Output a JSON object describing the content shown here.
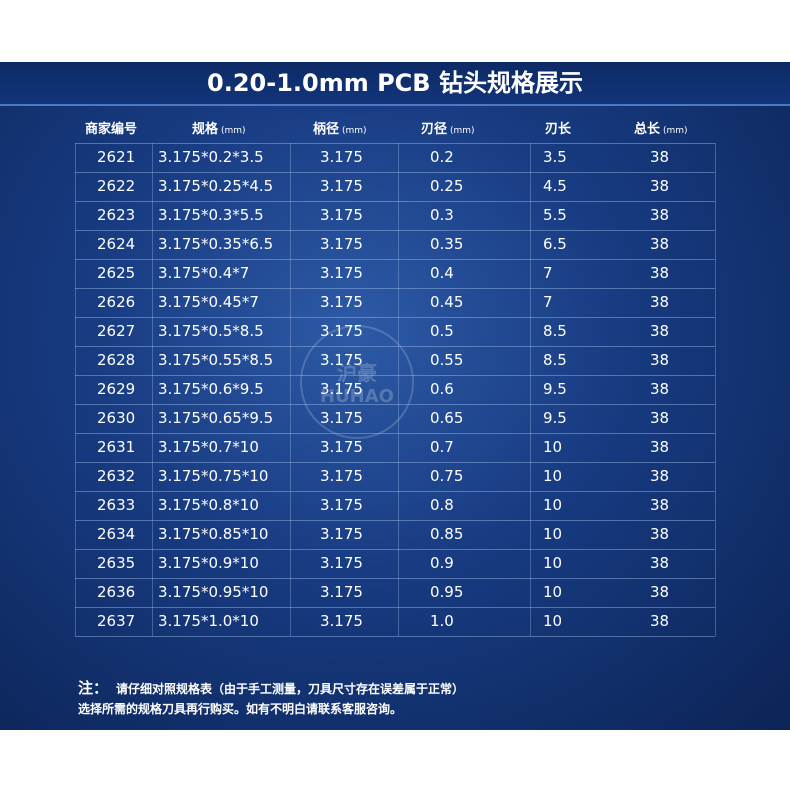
{
  "title": "0.20-1.0mm PCB 钻头规格展示",
  "table": {
    "header": [
      {
        "label": "商家编号"
      },
      {
        "label": "规格",
        "unit": "(mm)"
      },
      {
        "label": "柄径",
        "unit": "(mm)"
      },
      {
        "label": "刃径",
        "unit": "(mm)"
      },
      {
        "label": "刃长"
      },
      {
        "label": "总长",
        "unit": "(mm)"
      }
    ],
    "rows": [
      [
        "2621",
        "3.175*0.2*3.5",
        "3.175",
        "0.2",
        "3.5",
        "38"
      ],
      [
        "2622",
        "3.175*0.25*4.5",
        "3.175",
        "0.25",
        "4.5",
        "38"
      ],
      [
        "2623",
        "3.175*0.3*5.5",
        "3.175",
        "0.3",
        "5.5",
        "38"
      ],
      [
        "2624",
        "3.175*0.35*6.5",
        "3.175",
        "0.35",
        "6.5",
        "38"
      ],
      [
        "2625",
        "3.175*0.4*7",
        "3.175",
        "0.4",
        "7",
        "38"
      ],
      [
        "2626",
        "3.175*0.45*7",
        "3.175",
        "0.45",
        "7",
        "38"
      ],
      [
        "2627",
        "3.175*0.5*8.5",
        "3.175",
        "0.5",
        "8.5",
        "38"
      ],
      [
        "2628",
        "3.175*0.55*8.5",
        "3.175",
        "0.55",
        "8.5",
        "38"
      ],
      [
        "2629",
        "3.175*0.6*9.5",
        "3.175",
        "0.6",
        "9.5",
        "38"
      ],
      [
        "2630",
        "3.175*0.65*9.5",
        "3.175",
        "0.65",
        "9.5",
        "38"
      ],
      [
        "2631",
        "3.175*0.7*10",
        "3.175",
        "0.7",
        "10",
        "38"
      ],
      [
        "2632",
        "3.175*0.75*10",
        "3.175",
        "0.75",
        "10",
        "38"
      ],
      [
        "2633",
        "3.175*0.8*10",
        "3.175",
        "0.8",
        "10",
        "38"
      ],
      [
        "2634",
        "3.175*0.85*10",
        "3.175",
        "0.85",
        "10",
        "38"
      ],
      [
        "2635",
        "3.175*0.9*10",
        "3.175",
        "0.9",
        "10",
        "38"
      ],
      [
        "2636",
        "3.175*0.95*10",
        "3.175",
        "0.95",
        "10",
        "38"
      ],
      [
        "2637",
        "3.175*1.0*10",
        "3.175",
        "1.0",
        "10",
        "38"
      ]
    ]
  },
  "watermark": {
    "name": "沪豪",
    "latin": "HUHAO"
  },
  "note": {
    "label": "注：",
    "lines": [
      "请仔细对照规格表（由于手工测量，刀具尺寸存在误差属于正常）",
      "选择所需的规格刀具再行购买。如有不明白请联系客服咨询。"
    ]
  }
}
